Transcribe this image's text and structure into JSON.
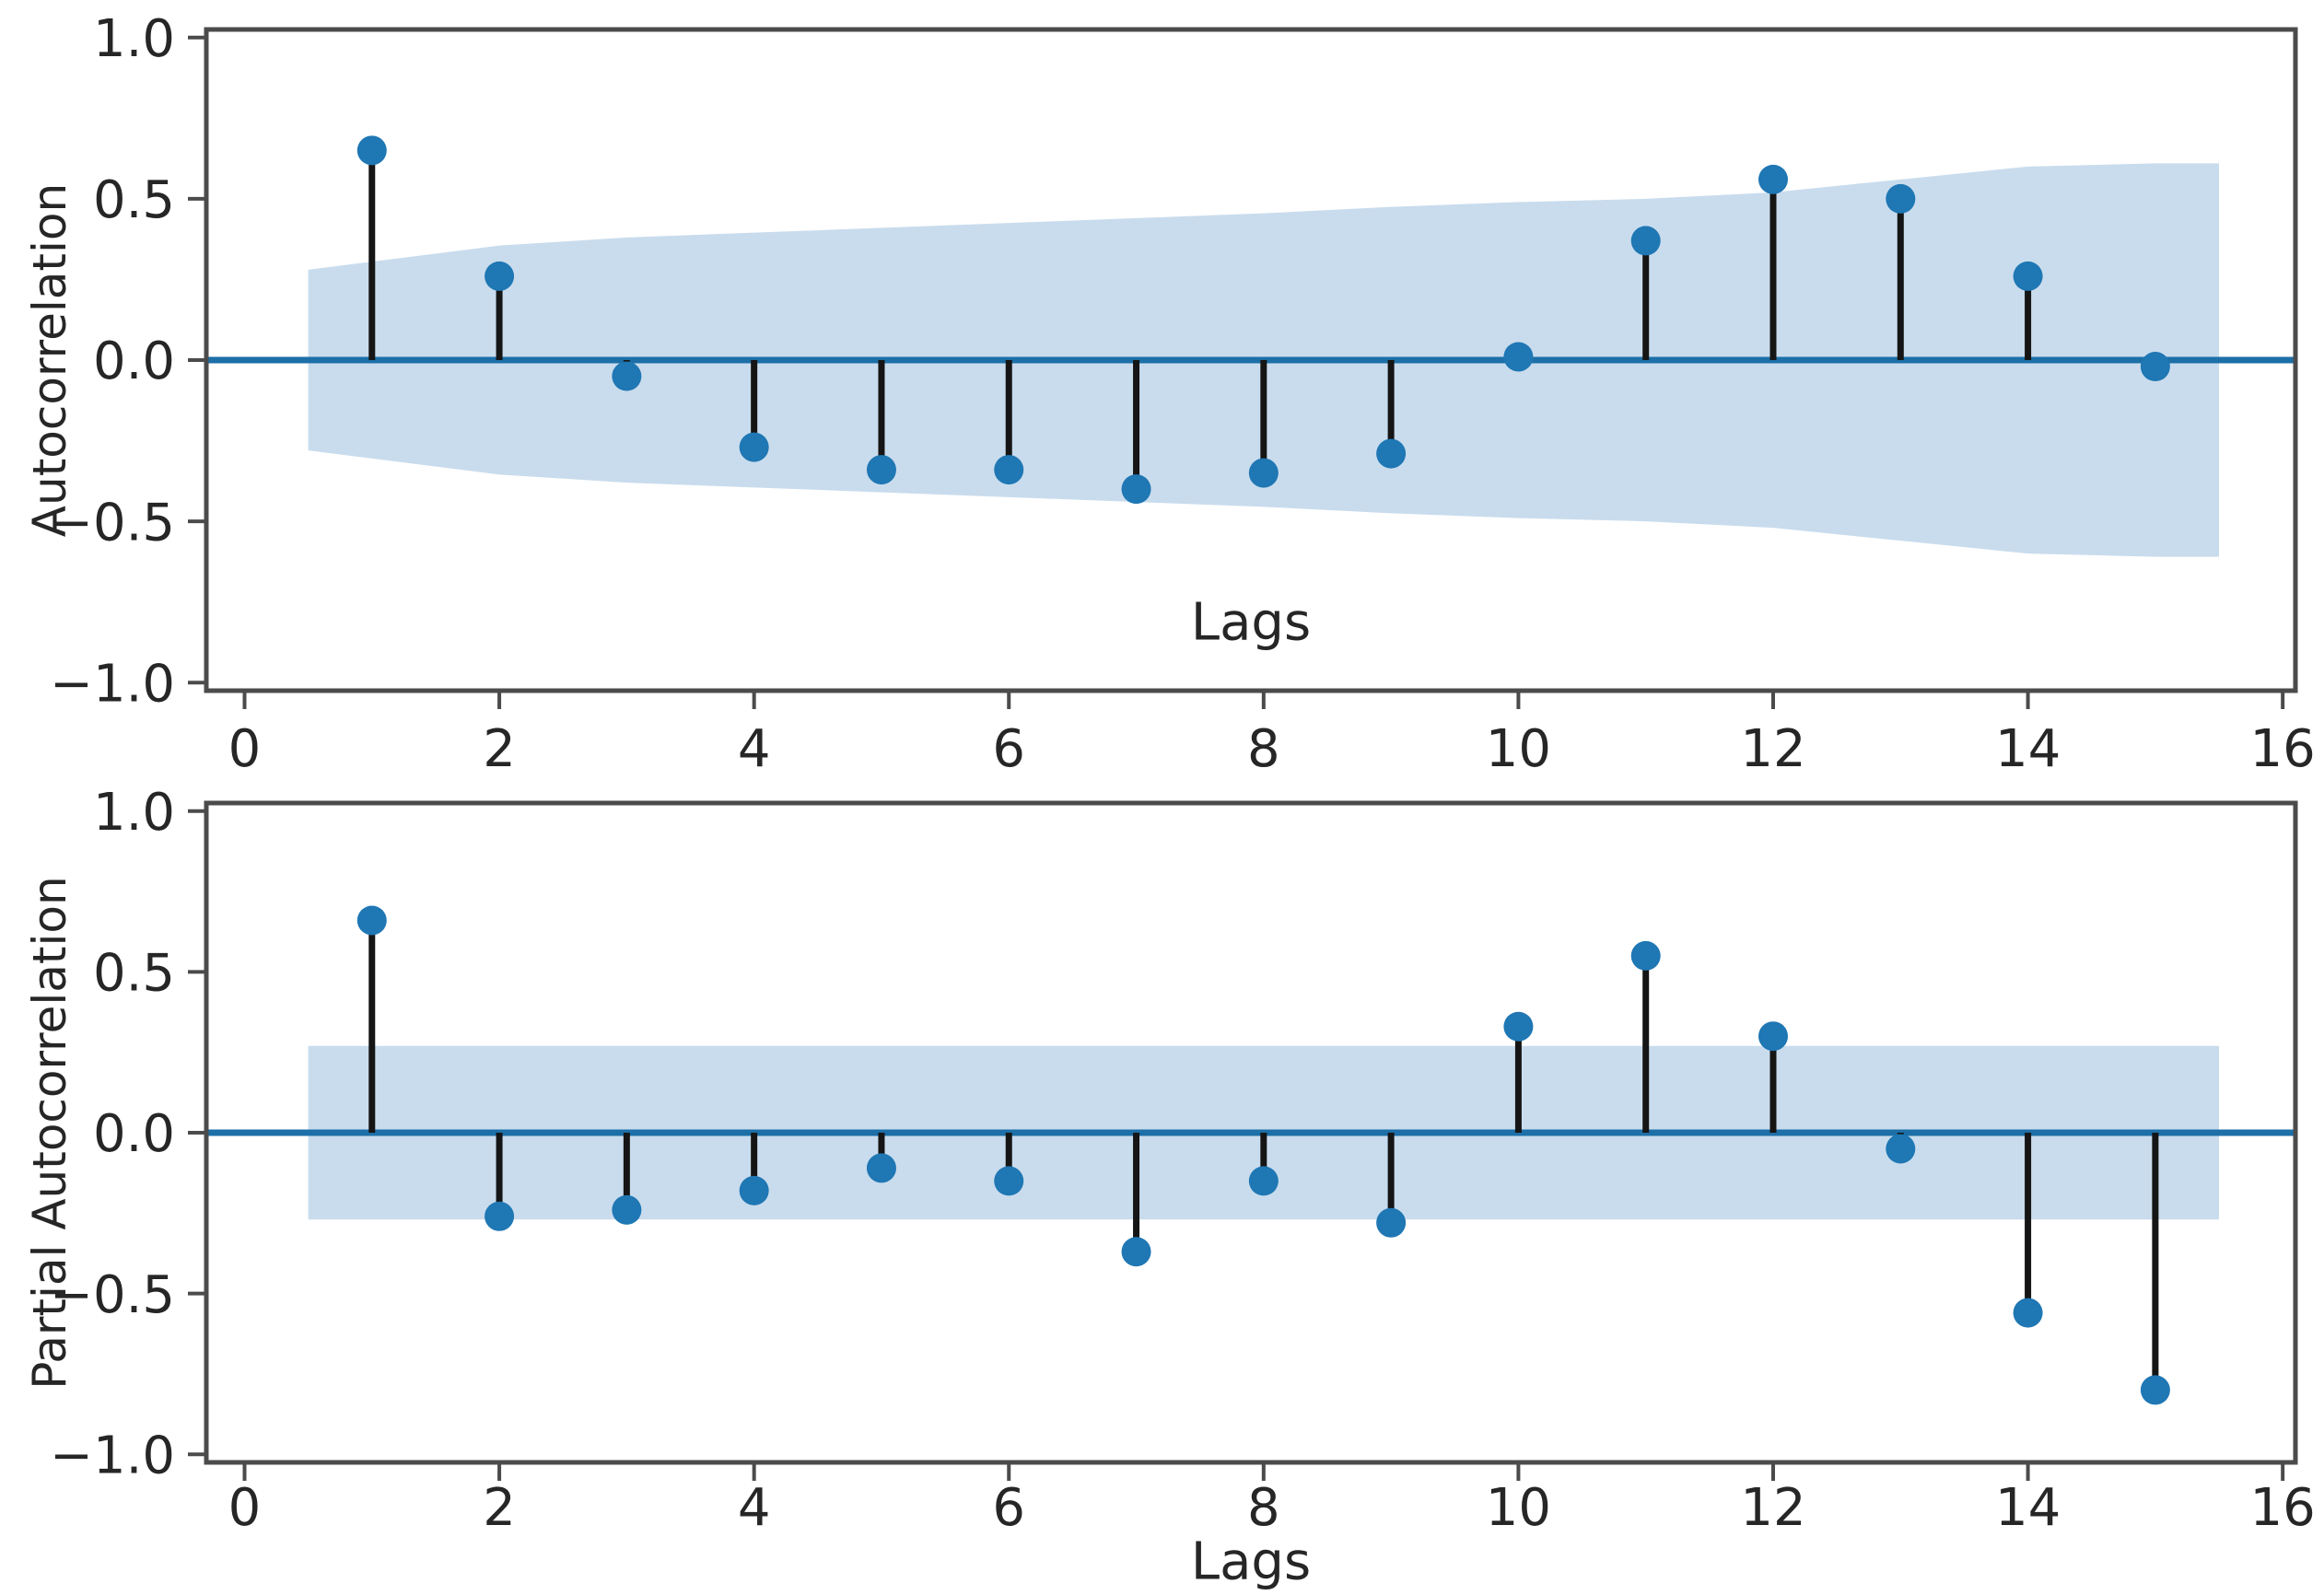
{
  "figure": {
    "background": "#ffffff"
  },
  "palette": {
    "marker": "#1f77b4",
    "stem_line": "#151515",
    "zero_line": "#1d6fa8",
    "band_fill": "#c9dced",
    "spine": "#4b4b4b",
    "tick_text": "#262626"
  },
  "chart_data": [
    {
      "type": "stem",
      "name": "acf",
      "title": "",
      "ylabel": "Autocorrelation",
      "xlabel": "Lags",
      "xlabel_placement": "inside-plot-bottom-center",
      "legend_position": "none",
      "grid": false,
      "xlim": [
        -0.3,
        16.1
      ],
      "ylim": [
        -1.025,
        1.025
      ],
      "xticks": [
        0,
        2,
        4,
        6,
        8,
        10,
        12,
        14,
        16
      ],
      "xtick_labels": [
        "0",
        "2",
        "4",
        "6",
        "8",
        "10",
        "12",
        "14",
        "16"
      ],
      "yticks": [
        1.0,
        0.5,
        0.0,
        -0.5,
        -1.0
      ],
      "ytick_labels": [
        "1.0",
        "0.5",
        "0.0",
        "−0.5",
        "−1.0"
      ],
      "lags": [
        1,
        2,
        3,
        4,
        5,
        6,
        7,
        8,
        9,
        10,
        11,
        12,
        13,
        14,
        15
      ],
      "values": [
        0.65,
        0.26,
        -0.05,
        -0.27,
        -0.34,
        -0.34,
        -0.4,
        -0.35,
        -0.29,
        0.01,
        0.37,
        0.56,
        0.5,
        0.26,
        -0.02
      ],
      "confidence_band": {
        "shape": "tapered",
        "x": [
          0.5,
          1,
          2,
          3,
          4,
          5,
          6,
          7,
          8,
          9,
          10,
          11,
          12,
          13,
          14,
          15,
          15.5
        ],
        "upper": [
          0.28,
          0.305,
          0.355,
          0.38,
          0.395,
          0.41,
          0.425,
          0.44,
          0.455,
          0.475,
          0.49,
          0.5,
          0.52,
          0.56,
          0.6,
          0.61,
          0.61
        ],
        "lower": [
          -0.28,
          -0.305,
          -0.355,
          -0.38,
          -0.395,
          -0.41,
          -0.425,
          -0.44,
          -0.455,
          -0.475,
          -0.49,
          -0.5,
          -0.52,
          -0.56,
          -0.6,
          -0.61,
          -0.61
        ]
      }
    },
    {
      "type": "stem",
      "name": "pacf",
      "title": "",
      "ylabel": "Partial Autocorrelation",
      "xlabel": "Lags",
      "xlabel_placement": "below-axis-center",
      "legend_position": "none",
      "grid": false,
      "xlim": [
        -0.3,
        16.1
      ],
      "ylim": [
        -1.025,
        1.025
      ],
      "xticks": [
        0,
        2,
        4,
        6,
        8,
        10,
        12,
        14,
        16
      ],
      "xtick_labels": [
        "0",
        "2",
        "4",
        "6",
        "8",
        "10",
        "12",
        "14",
        "16"
      ],
      "yticks": [
        1.0,
        0.5,
        0.0,
        -0.5,
        -1.0
      ],
      "ytick_labels": [
        "1.0",
        "0.5",
        "0.0",
        "−0.5",
        "−1.0"
      ],
      "lags": [
        1,
        2,
        3,
        4,
        5,
        6,
        7,
        8,
        9,
        10,
        11,
        12,
        13,
        14,
        15
      ],
      "values": [
        0.66,
        -0.26,
        -0.24,
        -0.18,
        -0.11,
        -0.15,
        -0.37,
        -0.15,
        -0.28,
        0.33,
        0.55,
        0.3,
        -0.05,
        -0.56,
        -0.8
      ],
      "confidence_band": {
        "shape": "constant",
        "x": [
          0.5,
          15.5
        ],
        "upper": [
          0.27,
          0.27
        ],
        "lower": [
          -0.27,
          -0.27
        ]
      }
    }
  ]
}
